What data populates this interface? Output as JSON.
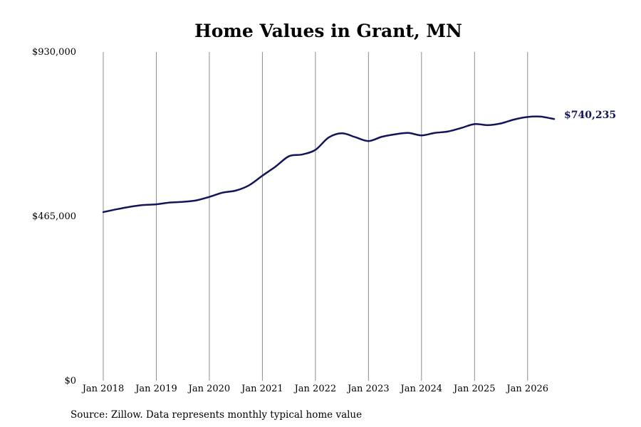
{
  "chart_data": {
    "type": "line",
    "title": "Home Values in Grant, MN",
    "source": "Source: Zillow. Data represents monthly typical home value",
    "ylim": [
      0,
      930000
    ],
    "yticks": [
      {
        "value": 0,
        "label": "$0"
      },
      {
        "value": 465000,
        "label": "$465,000"
      },
      {
        "value": 930000,
        "label": "$930,000"
      }
    ],
    "xlim": [
      "2018-01",
      "2026-07"
    ],
    "xticks": [
      {
        "value": "2018-01",
        "label": "Jan 2018"
      },
      {
        "value": "2019-01",
        "label": "Jan 2019"
      },
      {
        "value": "2020-01",
        "label": "Jan 2020"
      },
      {
        "value": "2021-01",
        "label": "Jan 2021"
      },
      {
        "value": "2022-01",
        "label": "Jan 2022"
      },
      {
        "value": "2023-01",
        "label": "Jan 2023"
      },
      {
        "value": "2024-01",
        "label": "Jan 2024"
      },
      {
        "value": "2025-01",
        "label": "Jan 2025"
      },
      {
        "value": "2026-01",
        "label": "Jan 2026"
      }
    ],
    "grid": "vertical",
    "line_color": "#14145a",
    "end_label": "$740,235",
    "series": [
      {
        "x": [
          "2018-01",
          "2018-04",
          "2018-07",
          "2018-10",
          "2019-01",
          "2019-04",
          "2019-07",
          "2019-10",
          "2020-01",
          "2020-04",
          "2020-07",
          "2020-10",
          "2021-01",
          "2021-04",
          "2021-07",
          "2021-10",
          "2022-01",
          "2022-04",
          "2022-07",
          "2022-10",
          "2023-01",
          "2023-04",
          "2023-07",
          "2023-10",
          "2024-01",
          "2024-04",
          "2024-07",
          "2024-10",
          "2025-01",
          "2025-04",
          "2025-07",
          "2025-10",
          "2026-01",
          "2026-04",
          "2026-07"
        ],
        "values": [
          477000,
          485000,
          492000,
          497000,
          499000,
          504000,
          506000,
          510000,
          520000,
          532000,
          538000,
          553000,
          580000,
          606000,
          635000,
          640000,
          653000,
          688000,
          700000,
          689000,
          678000,
          690000,
          697000,
          701000,
          694000,
          701000,
          705000,
          715000,
          726000,
          723000,
          728000,
          739000,
          746000,
          747000,
          740235
        ]
      }
    ]
  }
}
